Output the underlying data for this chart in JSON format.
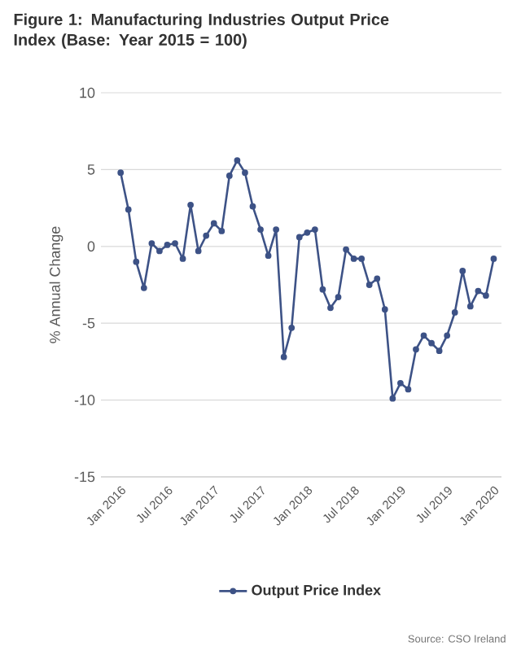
{
  "chart_data": {
    "type": "line",
    "title": "Figure 1: Manufacturing Industries Output Price Index (Base: Year 2015 = 100)",
    "ylabel": "% Annual Change",
    "x": [
      "2016-01",
      "2016-02",
      "2016-03",
      "2016-04",
      "2016-05",
      "2016-06",
      "2016-07",
      "2016-08",
      "2016-09",
      "2016-10",
      "2016-11",
      "2016-12",
      "2017-01",
      "2017-02",
      "2017-03",
      "2017-04",
      "2017-05",
      "2017-06",
      "2017-07",
      "2017-08",
      "2017-09",
      "2017-10",
      "2017-11",
      "2017-12",
      "2018-01",
      "2018-02",
      "2018-03",
      "2018-04",
      "2018-05",
      "2018-06",
      "2018-07",
      "2018-08",
      "2018-09",
      "2018-10",
      "2018-11",
      "2018-12",
      "2019-01",
      "2019-02",
      "2019-03",
      "2019-04",
      "2019-05",
      "2019-06",
      "2019-07",
      "2019-08",
      "2019-09",
      "2019-10",
      "2019-11",
      "2019-12",
      "2020-01"
    ],
    "series": [
      {
        "name": "Output Price Index",
        "color": "#3d5286",
        "values": [
          4.8,
          2.4,
          -1.0,
          -2.7,
          0.2,
          -0.3,
          0.1,
          0.2,
          -0.8,
          2.7,
          -0.3,
          0.7,
          1.5,
          1.0,
          4.6,
          5.6,
          4.8,
          2.6,
          1.1,
          -0.6,
          1.1,
          -7.2,
          -5.3,
          0.6,
          0.9,
          1.1,
          -2.8,
          -4.0,
          -3.3,
          -0.2,
          -0.8,
          -0.8,
          -2.5,
          -2.1,
          -4.1,
          -9.9,
          -8.9,
          -9.3,
          -6.7,
          -5.8,
          -6.3,
          -6.8,
          -5.8,
          -4.3,
          -1.6,
          -3.9,
          -2.9,
          -3.2,
          -0.8
        ]
      }
    ],
    "xlim": [
      "2015-10-15",
      "2020-02"
    ],
    "xticks": [
      {
        "value": "2016-01",
        "label": "Jan 2016"
      },
      {
        "value": "2016-07",
        "label": "Jul 2016"
      },
      {
        "value": "2017-01",
        "label": "Jan 2017"
      },
      {
        "value": "2017-07",
        "label": "Jul 2017"
      },
      {
        "value": "2018-01",
        "label": "Jan 2018"
      },
      {
        "value": "2018-07",
        "label": "Jul 2018"
      },
      {
        "value": "2019-01",
        "label": "Jan 2019"
      },
      {
        "value": "2019-07",
        "label": "Jul 2019"
      },
      {
        "value": "2020-01",
        "label": "Jan 2020"
      }
    ],
    "ylim": [
      -15,
      10
    ],
    "yticks": [
      -15,
      -10,
      -5,
      0,
      5,
      10
    ],
    "grid": "y",
    "legend": "bottom",
    "marker": "circle",
    "line_style": "solid",
    "annotations": [
      "Source: CSO Ireland"
    ]
  }
}
